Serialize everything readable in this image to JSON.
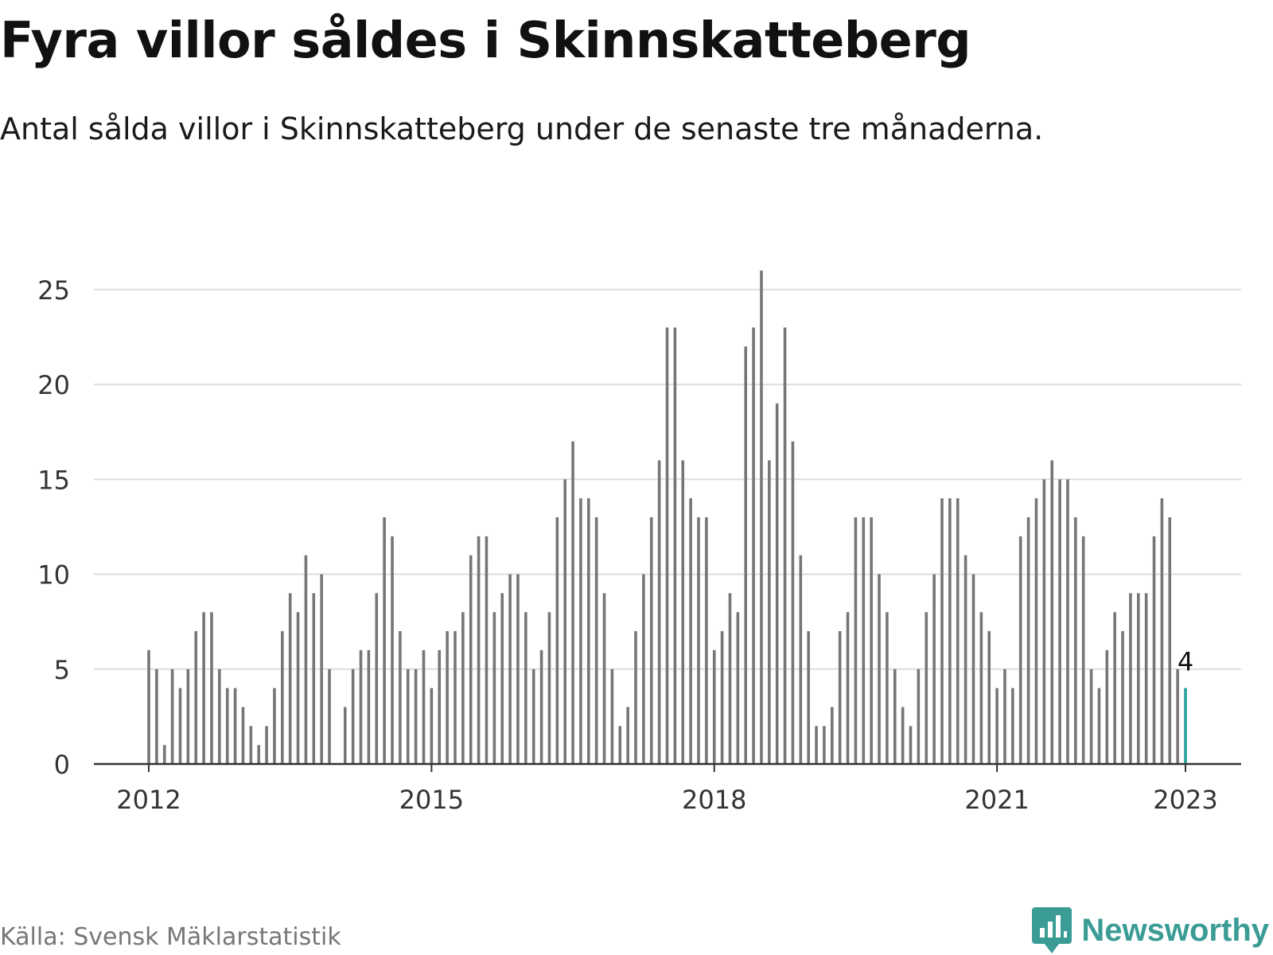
{
  "header": {
    "title": "Fyra villor såldes i Skinnskatteberg",
    "subtitle": "Antal sålda villor i Skinnskatteberg under de senaste tre månaderna."
  },
  "footer": {
    "source": "Källa: Svensk Mäklarstatistik",
    "brand": "Newsworthy",
    "brand_icon": "bar-chart-speech-bubble-icon"
  },
  "colors": {
    "bar": "#76757a",
    "highlight": "#2aa198",
    "grid": "#dddddd",
    "axis": "#333333",
    "brand": "#3a9c94"
  },
  "chart_data": {
    "type": "bar",
    "x_start": "2012-01",
    "x_end": "2023-01",
    "x_interval": "month",
    "x_ticks": [
      "2012",
      "2015",
      "2018",
      "2021",
      "2023"
    ],
    "y_ticks": [
      0,
      5,
      10,
      15,
      20,
      25
    ],
    "ylim": [
      0,
      26
    ],
    "grid": true,
    "values": [
      6,
      5,
      1,
      5,
      4,
      5,
      7,
      8,
      8,
      5,
      4,
      4,
      3,
      2,
      1,
      2,
      4,
      7,
      9,
      8,
      11,
      9,
      10,
      5,
      null,
      3,
      5,
      6,
      6,
      9,
      13,
      12,
      7,
      5,
      5,
      6,
      4,
      6,
      7,
      7,
      8,
      11,
      12,
      12,
      8,
      9,
      10,
      10,
      8,
      5,
      6,
      8,
      13,
      15,
      17,
      14,
      14,
      13,
      9,
      5,
      2,
      3,
      7,
      10,
      13,
      16,
      23,
      23,
      16,
      14,
      13,
      13,
      6,
      7,
      9,
      8,
      22,
      23,
      26,
      16,
      19,
      23,
      17,
      11,
      7,
      2,
      2,
      3,
      7,
      8,
      13,
      13,
      13,
      10,
      8,
      5,
      3,
      2,
      5,
      8,
      10,
      14,
      14,
      14,
      11,
      10,
      8,
      7,
      4,
      5,
      4,
      12,
      13,
      14,
      15,
      16,
      15,
      15,
      13,
      12,
      5,
      4,
      6,
      8,
      7,
      9,
      9,
      9,
      12,
      14,
      13,
      5,
      4
    ],
    "highlight_last": true,
    "annotation": {
      "label": "4",
      "value": 4
    }
  }
}
